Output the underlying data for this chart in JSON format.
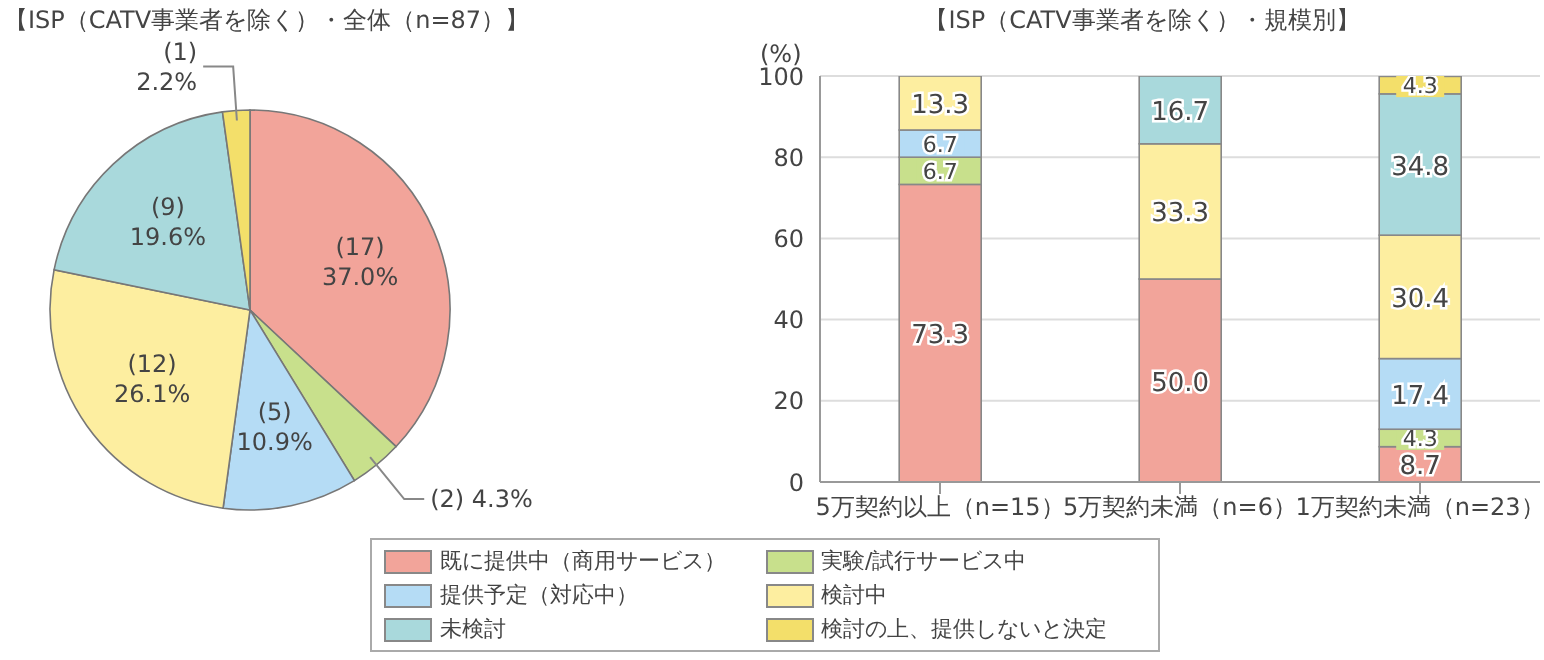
{
  "chart_data": [
    {
      "type": "pie",
      "title": "【ISP（CATV事業者を除く）・全体（n=87）】",
      "categories": [
        "既に提供中（商用サービス）",
        "実験/試行サービス中",
        "提供予定（対応中）",
        "検討中",
        "未検討",
        "検討の上、提供しないと決定"
      ],
      "values": [
        37.0,
        4.3,
        10.9,
        26.1,
        19.6,
        2.2
      ],
      "colors": [
        "#f2a49a",
        "#c8e08c",
        "#b5dcf5",
        "#fdeea0",
        "#a9d9dc",
        "#f3df6a"
      ],
      "value_labels": [
        "(17)\n37.0%",
        "(2) 4.3%",
        "(5)\n10.9%",
        "(12)\n26.1%",
        "(9)\n19.6%",
        "(1)\n2.2%"
      ],
      "legend": "bottom"
    },
    {
      "type": "bar",
      "stacked": true,
      "title": "【ISP（CATV事業者を除く）・規模別】",
      "ylabel": "(%)",
      "categories": [
        "5万契約以上（n=15）",
        "5万契約未満（n=6）",
        "1万契約未満（n=23）"
      ],
      "ylim": [
        0,
        100
      ],
      "yticks": [
        0,
        20,
        40,
        60,
        80,
        100
      ],
      "grid": "y",
      "series": [
        {
          "color": "#f2a49a",
          "values": [
            73.3,
            50.0,
            8.7
          ],
          "value_labels": [
            "73.3",
            "50.0",
            "8.7"
          ]
        },
        {
          "color": "#c8e08c",
          "values": [
            6.7,
            null,
            4.3
          ],
          "value_labels": [
            "6.7",
            null,
            "4.3"
          ]
        },
        {
          "color": "#b5dcf5",
          "values": [
            6.7,
            null,
            17.4
          ],
          "value_labels": [
            "6.7",
            null,
            "17.4"
          ]
        },
        {
          "color": "#fdeea0",
          "values": [
            13.3,
            33.3,
            30.4
          ],
          "value_labels": [
            "13.3",
            "33.3",
            "30.4"
          ]
        },
        {
          "color": "#a9d9dc",
          "values": [
            null,
            16.7,
            34.8
          ],
          "value_labels": [
            null,
            "16.7",
            "34.8"
          ]
        },
        {
          "color": "#f3df6a",
          "values": [
            null,
            null,
            4.3
          ],
          "value_labels": [
            null,
            null,
            "4.3"
          ]
        }
      ]
    }
  ]
}
